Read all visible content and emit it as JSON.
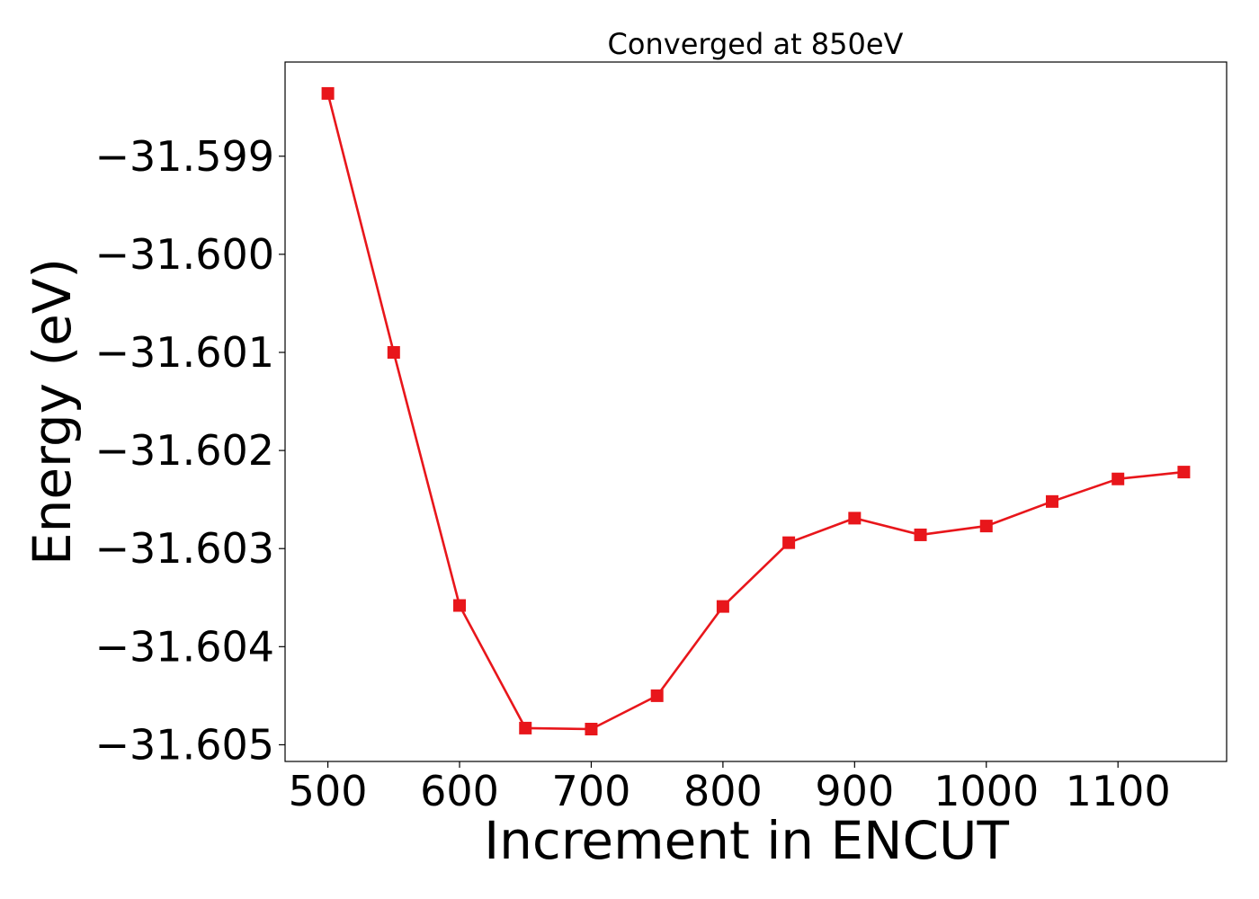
{
  "chart_data": {
    "type": "line",
    "title": "Converged at 850eV",
    "xlabel": "Increment in ENCUT",
    "ylabel": "Energy (eV)",
    "x": [
      500,
      550,
      600,
      650,
      700,
      750,
      800,
      850,
      900,
      950,
      1000,
      1050,
      1100,
      1150
    ],
    "series": [
      {
        "values": [
          -31.59836,
          -31.601,
          -31.60358,
          -31.60483,
          -31.60484,
          -31.6045,
          -31.60359,
          -31.60294,
          -31.60269,
          -31.60286,
          -31.60277,
          -31.60252,
          -31.60229,
          -31.60222
        ],
        "color": "#e8161b",
        "marker": "square"
      }
    ],
    "xticks": [
      500,
      600,
      700,
      800,
      900,
      1000,
      1100
    ],
    "xtick_labels": [
      "500",
      "600",
      "700",
      "800",
      "900",
      "1000",
      "1100"
    ],
    "yticks": [
      -31.599,
      -31.6,
      -31.601,
      -31.602,
      -31.603,
      -31.604,
      -31.605
    ],
    "ytick_labels": [
      "−31.599",
      "−31.600",
      "−31.601",
      "−31.602",
      "−31.603",
      "−31.604",
      "−31.605"
    ],
    "xlim": [
      467.5,
      1182.5
    ],
    "ylim": [
      -31.60517,
      -31.59804
    ],
    "grid": false,
    "legend": "none"
  }
}
